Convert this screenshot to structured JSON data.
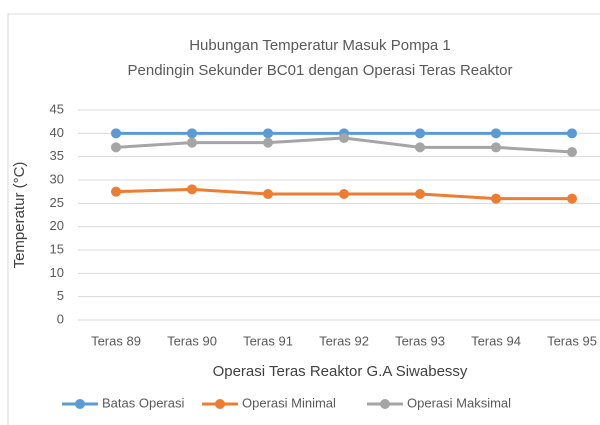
{
  "chart_data": {
    "type": "line",
    "title": [
      "Hubungan Temperatur Masuk Pompa 1",
      "Pendingin Sekunder BC01 dengan Operasi Teras Reaktor"
    ],
    "x_label": "Operasi Teras Reaktor G.A Siwabessy",
    "y_label": "Temperatur (°C)",
    "categories": [
      "Teras 89",
      "Teras 90",
      "Teras 91",
      "Teras 92",
      "Teras 93",
      "Teras 94",
      "Teras 95"
    ],
    "series": [
      {
        "name": "Batas Operasi",
        "color": "#5b9bd5",
        "values": [
          40,
          40,
          40,
          40,
          40,
          40,
          40
        ]
      },
      {
        "name": "Operasi Minimal",
        "color": "#ed7d31",
        "values": [
          27.5,
          28,
          27,
          27,
          27,
          26,
          26
        ]
      },
      {
        "name": "Operasi Maksimal",
        "color": "#a5a5a5",
        "values": [
          37,
          38,
          38,
          39,
          37,
          37,
          36
        ]
      }
    ],
    "ylim": [
      0,
      45
    ],
    "yticks": [
      0,
      5,
      10,
      15,
      20,
      25,
      30,
      35,
      40,
      45
    ],
    "grid": true,
    "legend": "bottom"
  }
}
